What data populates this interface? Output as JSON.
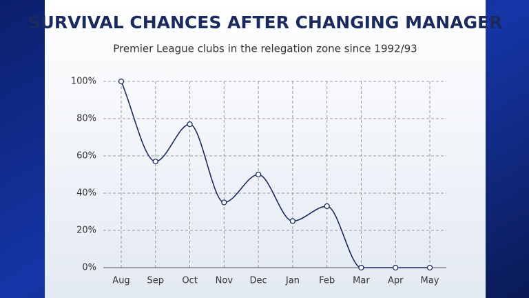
{
  "chart_data": {
    "type": "line",
    "title": "SURVIVAL CHANCES AFTER CHANGING MANAGER",
    "subtitle": "Premier League clubs in the relegation zone since 1992/93",
    "categories": [
      "Aug",
      "Sep",
      "Oct",
      "Nov",
      "Dec",
      "Jan",
      "Feb",
      "Mar",
      "Apr",
      "May"
    ],
    "values": [
      100,
      57,
      77,
      35,
      50,
      25,
      33,
      0,
      0,
      0
    ],
    "color": "#1a2a5e",
    "ylim": [
      0,
      100
    ],
    "yticks": [
      {
        "value": 0,
        "label": "0%"
      },
      {
        "value": 20,
        "label": "20%"
      },
      {
        "value": 40,
        "label": "40%"
      },
      {
        "value": 60,
        "label": "60%"
      },
      {
        "value": 80,
        "label": "80%"
      },
      {
        "value": 100,
        "label": "100%"
      }
    ],
    "grid": true
  }
}
